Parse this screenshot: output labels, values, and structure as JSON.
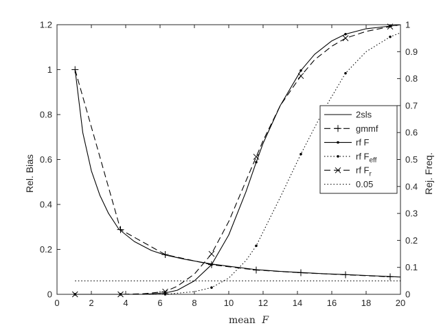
{
  "chart_data": {
    "type": "line",
    "xlabel_prefix": "mean",
    "xlabel_symbol": "F",
    "ylabel_left": "Rel. Bias",
    "ylabel_right": "Rej. Freq.",
    "xlim": [
      0,
      20
    ],
    "ylim_left": [
      0,
      1.2
    ],
    "ylim_right": [
      0,
      1
    ],
    "x_ticks": [
      0,
      2,
      4,
      6,
      8,
      10,
      12,
      14,
      16,
      18,
      20
    ],
    "y_left_ticks": [
      0,
      0.2,
      0.4,
      0.6,
      0.8,
      1,
      1.2
    ],
    "y_right_ticks": [
      0,
      0.1,
      0.2,
      0.3,
      0.4,
      0.5,
      0.6,
      0.7,
      0.8,
      0.9,
      1
    ],
    "grid": false,
    "legend_position": "right",
    "series": [
      {
        "name": "2sls",
        "axis": "left",
        "style": "solid",
        "marker": "none",
        "x": [
          1.05,
          1.5,
          2,
          2.5,
          3,
          3.6,
          4.5,
          5.5,
          6.3,
          7.5,
          9,
          10,
          11.6,
          13,
          14.2,
          15.5,
          16.8,
          18,
          19.4,
          20
        ],
        "y": [
          1.0,
          0.72,
          0.55,
          0.44,
          0.36,
          0.29,
          0.235,
          0.195,
          0.175,
          0.155,
          0.135,
          0.125,
          0.11,
          0.102,
          0.097,
          0.092,
          0.088,
          0.084,
          0.079,
          0.077
        ]
      },
      {
        "name": "gmmf",
        "axis": "left",
        "style": "dashed",
        "marker": "plus",
        "x": [
          1.05,
          3.7,
          6.3,
          9.0,
          11.6,
          14.2,
          16.8,
          19.4
        ],
        "y": [
          1.0,
          0.288,
          0.177,
          0.132,
          0.108,
          0.096,
          0.087,
          0.078
        ]
      },
      {
        "name": "rf F",
        "axis": "right",
        "style": "solid",
        "marker": "dot",
        "x": [
          1.05,
          3.7,
          5,
          6.3,
          7,
          8,
          9,
          10,
          11,
          11.6,
          12,
          13,
          14.2,
          15,
          16,
          16.8,
          18,
          19.4,
          20
        ],
        "y": [
          0.0,
          0.0,
          0.0,
          0.005,
          0.015,
          0.05,
          0.11,
          0.22,
          0.38,
          0.49,
          0.56,
          0.7,
          0.83,
          0.89,
          0.94,
          0.965,
          0.985,
          0.995,
          1.0
        ]
      },
      {
        "name": "rf F",
        "subscript": "eff",
        "axis": "right",
        "style": "dotted",
        "marker": "dot",
        "x": [
          1.05,
          3.7,
          6.3,
          8,
          9,
          10,
          11,
          11.6,
          13,
          14.2,
          15.5,
          16.8,
          18,
          19.4,
          20
        ],
        "y": [
          0.0,
          0.0,
          0.0,
          0.01,
          0.025,
          0.06,
          0.125,
          0.18,
          0.36,
          0.52,
          0.68,
          0.82,
          0.9,
          0.955,
          0.97
        ]
      },
      {
        "name": "rf F",
        "subscript": "r",
        "axis": "right",
        "style": "dashed",
        "marker": "x",
        "x": [
          1.05,
          3.7,
          5,
          6.3,
          7,
          8,
          9,
          10,
          11,
          11.6,
          12,
          13,
          14.2,
          15,
          16,
          16.8,
          18,
          19.4,
          20
        ],
        "y": [
          0.0,
          0.0,
          0.002,
          0.01,
          0.03,
          0.075,
          0.15,
          0.27,
          0.42,
          0.51,
          0.57,
          0.7,
          0.81,
          0.87,
          0.92,
          0.95,
          0.975,
          0.993,
          1.0
        ]
      },
      {
        "name": "0.05",
        "axis": "right",
        "style": "dotted",
        "marker": "none",
        "x": [
          1.05,
          20
        ],
        "y": [
          0.05,
          0.05
        ]
      }
    ]
  }
}
